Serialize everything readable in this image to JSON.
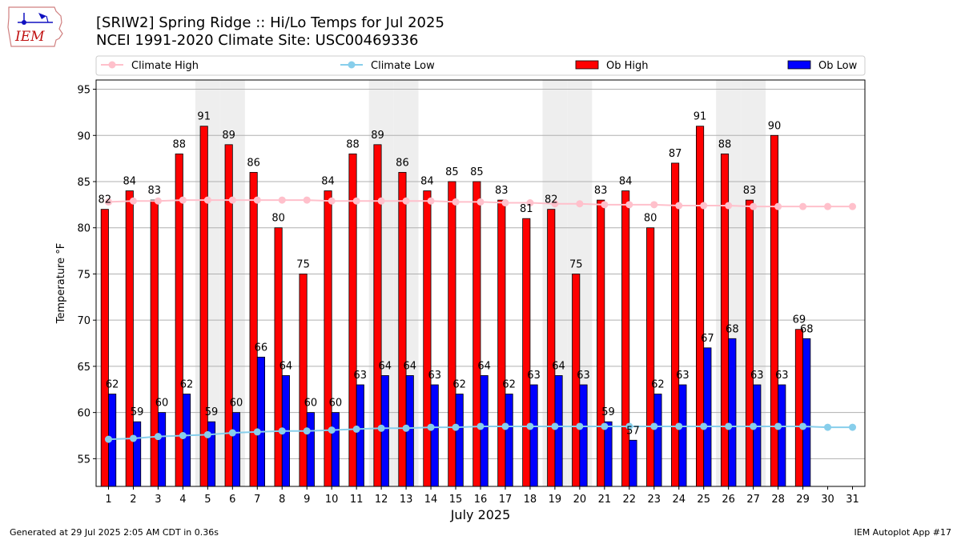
{
  "logo_text": "IEM",
  "header": {
    "title": "[SRIW2] Spring Ridge :: Hi/Lo Temps for Jul 2025",
    "subtitle": "NCEI 1991-2020 Climate Site: USC00469336"
  },
  "footer": {
    "left": "Generated at 29 Jul 2025 2:05 AM CDT in 0.36s",
    "right": "IEM Autoplot App #17"
  },
  "colors": {
    "ob_high": "#ff0000",
    "ob_low": "#0000ff",
    "climate_high": "#ffc0cb",
    "climate_low": "#87ceeb",
    "weekend_shade": "#eeeeee",
    "grid": "#b0b0b0"
  },
  "chart_data": {
    "type": "bar",
    "title": "[SRIW2] Spring Ridge :: Hi/Lo Temps for Jul 2025",
    "xlabel": "July 2025",
    "ylabel": "Temperature °F",
    "ylim": [
      52,
      96
    ],
    "yticks": [
      55,
      60,
      65,
      70,
      75,
      80,
      85,
      90,
      95
    ],
    "grid": "horizontal",
    "legend_position": "top",
    "categories": [
      1,
      2,
      3,
      4,
      5,
      6,
      7,
      8,
      9,
      10,
      11,
      12,
      13,
      14,
      15,
      16,
      17,
      18,
      19,
      20,
      21,
      22,
      23,
      24,
      25,
      26,
      27,
      28,
      29,
      30,
      31
    ],
    "shaded_days": [
      5,
      6,
      12,
      13,
      19,
      20,
      26,
      27
    ],
    "series": [
      {
        "name": "Climate High",
        "kind": "line",
        "values": [
          82.8,
          82.9,
          82.9,
          83.0,
          83.0,
          83.0,
          83.0,
          83.0,
          83.0,
          82.9,
          82.9,
          82.9,
          82.9,
          82.9,
          82.8,
          82.8,
          82.7,
          82.7,
          82.6,
          82.6,
          82.5,
          82.5,
          82.5,
          82.4,
          82.4,
          82.4,
          82.3,
          82.3,
          82.3,
          82.3,
          82.3
        ]
      },
      {
        "name": "Climate Low",
        "kind": "line",
        "values": [
          57.1,
          57.2,
          57.4,
          57.5,
          57.6,
          57.8,
          57.9,
          58.0,
          58.0,
          58.1,
          58.2,
          58.3,
          58.3,
          58.4,
          58.4,
          58.5,
          58.5,
          58.5,
          58.5,
          58.5,
          58.5,
          58.5,
          58.5,
          58.5,
          58.5,
          58.5,
          58.5,
          58.5,
          58.5,
          58.4,
          58.4
        ]
      },
      {
        "name": "Ob High",
        "kind": "bar",
        "values": [
          82,
          84,
          83,
          88,
          91,
          89,
          86,
          80,
          75,
          84,
          88,
          89,
          86,
          84,
          85,
          85,
          83,
          81,
          82,
          75,
          83,
          84,
          80,
          87,
          91,
          88,
          83,
          90,
          69,
          null,
          null
        ]
      },
      {
        "name": "Ob Low",
        "kind": "bar",
        "values": [
          62,
          59,
          60,
          62,
          59,
          60,
          66,
          64,
          60,
          60,
          63,
          64,
          64,
          63,
          62,
          64,
          62,
          63,
          64,
          63,
          59,
          57,
          62,
          63,
          67,
          68,
          63,
          63,
          68,
          null,
          null
        ]
      }
    ]
  }
}
